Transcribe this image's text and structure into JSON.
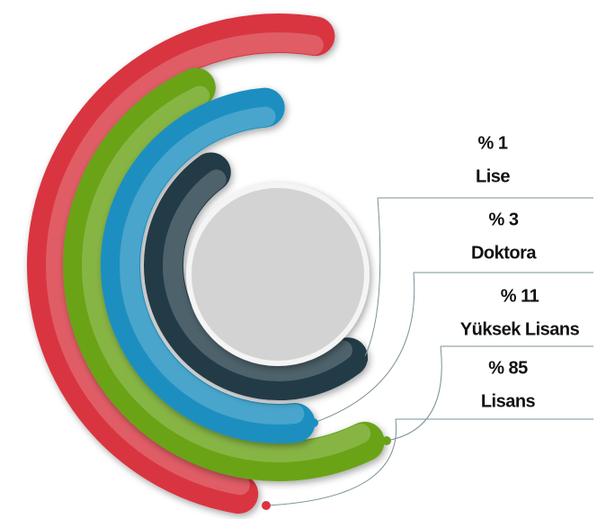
{
  "chart_data": {
    "type": "radial-arcs",
    "categories": [
      "Lise",
      "Doktora",
      "Yüksek Lisans",
      "Lisans"
    ],
    "values": [
      1,
      3,
      11,
      85
    ],
    "value_labels": [
      "% 1",
      "% 3",
      "% 11",
      "% 85"
    ],
    "colors": [
      "#223b47",
      "#1a8fc0",
      "#6aa319",
      "#d9343f"
    ]
  }
}
